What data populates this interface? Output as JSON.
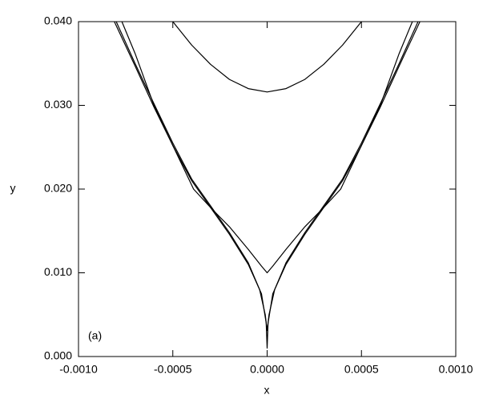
{
  "chart_data": {
    "type": "line",
    "xlabel": "x",
    "ylabel": "y",
    "annotation": "(a)",
    "xlim": [
      -0.001,
      0.001
    ],
    "ylim": [
      0,
      0.04
    ],
    "xticks": [
      {
        "value": -0.001,
        "label": "-0.0010"
      },
      {
        "value": -0.0005,
        "label": "-0.0005"
      },
      {
        "value": 0,
        "label": "0.0000"
      },
      {
        "value": 0.0005,
        "label": "0.0005"
      },
      {
        "value": 0.001,
        "label": "0.0010"
      }
    ],
    "yticks": [
      {
        "value": 0,
        "label": "0.000"
      },
      {
        "value": 0.01,
        "label": "0.010"
      },
      {
        "value": 0.02,
        "label": "0.020"
      },
      {
        "value": 0.03,
        "label": "0.030"
      },
      {
        "value": 0.04,
        "label": "0.040"
      }
    ],
    "series": [
      {
        "color": "#000000",
        "x": [
          -0.0005,
          -0.0004,
          -0.0003,
          -0.0002,
          -0.0001,
          0,
          0.0001,
          0.0002,
          0.0003,
          0.0004,
          0.0005
        ],
        "values": [
          0.04,
          0.0372,
          0.0349,
          0.0331,
          0.032,
          0.0316,
          0.032,
          0.0331,
          0.0349,
          0.0372,
          0.04
        ]
      },
      {
        "color": "#000000",
        "x": [
          -0.00077,
          -0.0007,
          -0.0006,
          -0.0005,
          -0.00039,
          -0.0003,
          -0.0002,
          -0.0001,
          -3e-05,
          0,
          3e-05,
          0.0001,
          0.0002,
          0.0003,
          0.00039,
          0.0005,
          0.0006,
          0.0007,
          0.00077
        ],
        "values": [
          0.04,
          0.0362,
          0.03,
          0.0252,
          0.02,
          0.0178,
          0.0155,
          0.0128,
          0.0108,
          0.01,
          0.0108,
          0.0128,
          0.0155,
          0.0178,
          0.02,
          0.0252,
          0.03,
          0.0362,
          0.04
        ]
      },
      {
        "color": "#000000",
        "x": [
          -0.0008,
          -0.0007,
          -0.0006,
          -0.0005,
          -0.0004,
          -0.0003,
          -0.0002,
          -0.0001,
          -4e-05,
          -1e-05,
          0,
          1e-05,
          4e-05,
          0.0001,
          0.0002,
          0.0003,
          0.0004,
          0.0005,
          0.0006,
          0.0007,
          0.0008
        ],
        "values": [
          0.04,
          0.035,
          0.0302,
          0.0255,
          0.0212,
          0.018,
          0.0148,
          0.0112,
          0.008,
          0.005,
          0.0031,
          0.005,
          0.008,
          0.0112,
          0.0148,
          0.018,
          0.0212,
          0.0255,
          0.0302,
          0.035,
          0.04
        ]
      },
      {
        "color": "#000000",
        "x": [
          -0.00081,
          -0.0007,
          -0.0006,
          -0.0005,
          -0.0004,
          -0.0003,
          -0.0002,
          -0.0001,
          -3e-05,
          -5e-06,
          0,
          5e-06,
          3e-05,
          0.0001,
          0.0002,
          0.0003,
          0.0004,
          0.0005,
          0.0006,
          0.0007,
          0.00081
        ],
        "values": [
          0.04,
          0.0347,
          0.0298,
          0.0252,
          0.021,
          0.0178,
          0.0146,
          0.011,
          0.0075,
          0.004,
          0.001,
          0.004,
          0.0075,
          0.011,
          0.0146,
          0.0178,
          0.021,
          0.0252,
          0.0298,
          0.0347,
          0.04
        ]
      }
    ]
  }
}
